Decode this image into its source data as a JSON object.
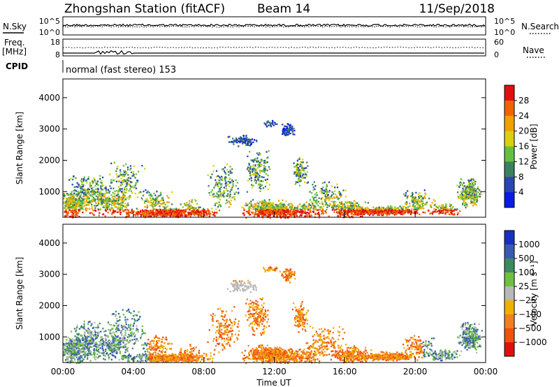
{
  "header": {
    "title": "Zhongshan Station (fitACF)",
    "beam": "Beam 14",
    "date": "11/Sep/2018"
  },
  "noise_panel": {
    "left_label": "N.Sky",
    "right_label": "N.Search",
    "ytick_top": "10^5",
    "ytick_bottom": "10^0"
  },
  "freq_panel": {
    "left_label_line1": "Freq.",
    "left_label_line2": "[MHz]",
    "left_tick_top": "18",
    "left_tick_bottom": "8",
    "right_label": "Nave",
    "right_tick_top": "60",
    "right_tick_bottom": "0"
  },
  "cpid": {
    "label": "CPID",
    "value": "normal (fast stereo) 153"
  },
  "chart_data": [
    {
      "type": "heatmap",
      "name": "Power",
      "ylabel": "Slant Range [km]",
      "ylim": [
        180,
        4600
      ],
      "yticks": [
        "1000",
        "2000",
        "3000",
        "4000"
      ],
      "colorbar_label": "Power [dB]",
      "colorbar_ticks": [
        "4",
        "8",
        "12",
        "16",
        "20",
        "24",
        "28"
      ],
      "colors": [
        "#0a1be8",
        "#2a46b0",
        "#3c8060",
        "#66c040",
        "#d8d010",
        "#f0a000",
        "#f06400",
        "#e01010"
      ]
    },
    {
      "type": "heatmap",
      "name": "Velocity",
      "ylabel": "Slant Range [km]",
      "ylim": [
        180,
        4600
      ],
      "yticks": [
        "1000",
        "2000",
        "3000",
        "4000"
      ],
      "colorbar_label": "Velocity [m s⁻¹]",
      "colorbar_ticks": [
        "1000",
        "500",
        "100",
        "25",
        "−25",
        "−100",
        "−500",
        "−1000"
      ],
      "colors": [
        "#1830c0",
        "#3a5ab0",
        "#3c8a60",
        "#70c040",
        "#b8b8b8",
        "#f0b000",
        "#f08020",
        "#f05010",
        "#e01010"
      ]
    }
  ],
  "x_axis": {
    "ticks": [
      "00:00",
      "04:00",
      "08:00",
      "12:00",
      "16:00",
      "20:00",
      "00:00"
    ],
    "label": "Time UT"
  }
}
